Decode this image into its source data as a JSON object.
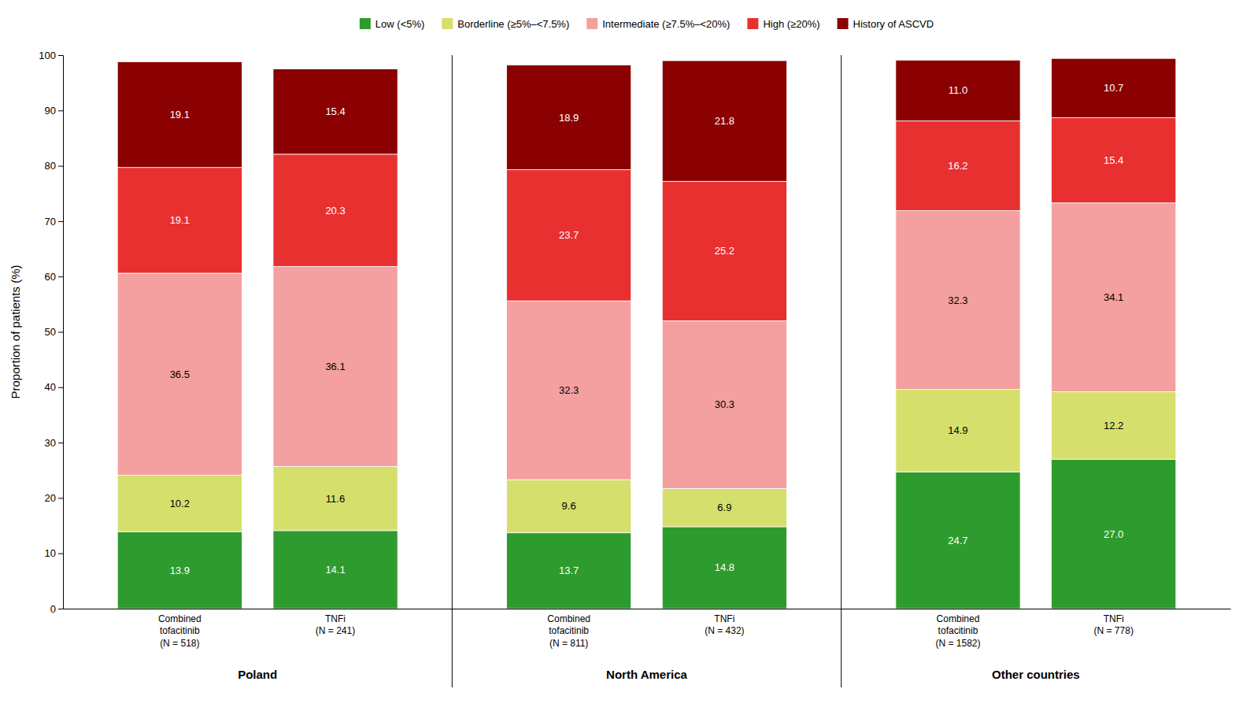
{
  "chart_data": {
    "type": "bar",
    "stacked": true,
    "data_labels": true,
    "grid": false,
    "legend": "top",
    "categories": [
      "Combined\ntofacitinib\n(N = 518)",
      "TNFi\n(N = 241)",
      "Combined\ntofacitinib\n(N = 811)",
      "TNFi\n(N = 432)",
      "Combined\ntofacitinib\n(N = 1582)",
      "TNFi\n(N = 778)"
    ],
    "groups": [
      "Poland",
      "North America",
      "Other countries"
    ],
    "series": [
      {
        "name": "Low (<5%)",
        "color": "#2e9b2e",
        "values": [
          13.9,
          14.1,
          13.7,
          14.8,
          24.7,
          27.0
        ],
        "value_labels": [
          "13.9",
          "14.1",
          "13.7",
          "14.8",
          "24.7",
          "27.0"
        ]
      },
      {
        "name": "Borderline (≥5%–<7.5%)",
        "color": "#d4e06b",
        "values": [
          10.2,
          11.6,
          9.6,
          6.9,
          14.9,
          12.2
        ]
      },
      {
        "name": "Intermediate (≥7.5%–<20%)",
        "color": "#f4a0a0",
        "values": [
          36.5,
          36.1,
          32.3,
          30.3,
          32.3,
          34.1
        ]
      },
      {
        "name": "High (≥20%)",
        "color": "#e83030",
        "values": [
          19.1,
          20.3,
          23.7,
          25.2,
          16.2,
          15.4
        ]
      },
      {
        "name": "History of ASCVD",
        "color": "#8b0000",
        "values": [
          19.1,
          15.4,
          18.9,
          21.8,
          11.0,
          10.7
        ],
        "value_labels": [
          "19.1",
          "15.4",
          "18.9",
          "21.8",
          "11.0",
          "10.7"
        ]
      }
    ],
    "ylabel": "Proportion of patients (%)",
    "ylim": [
      0,
      100
    ],
    "yticks": [
      0,
      10,
      20,
      30,
      40,
      50,
      60,
      70,
      80,
      90,
      100
    ]
  }
}
